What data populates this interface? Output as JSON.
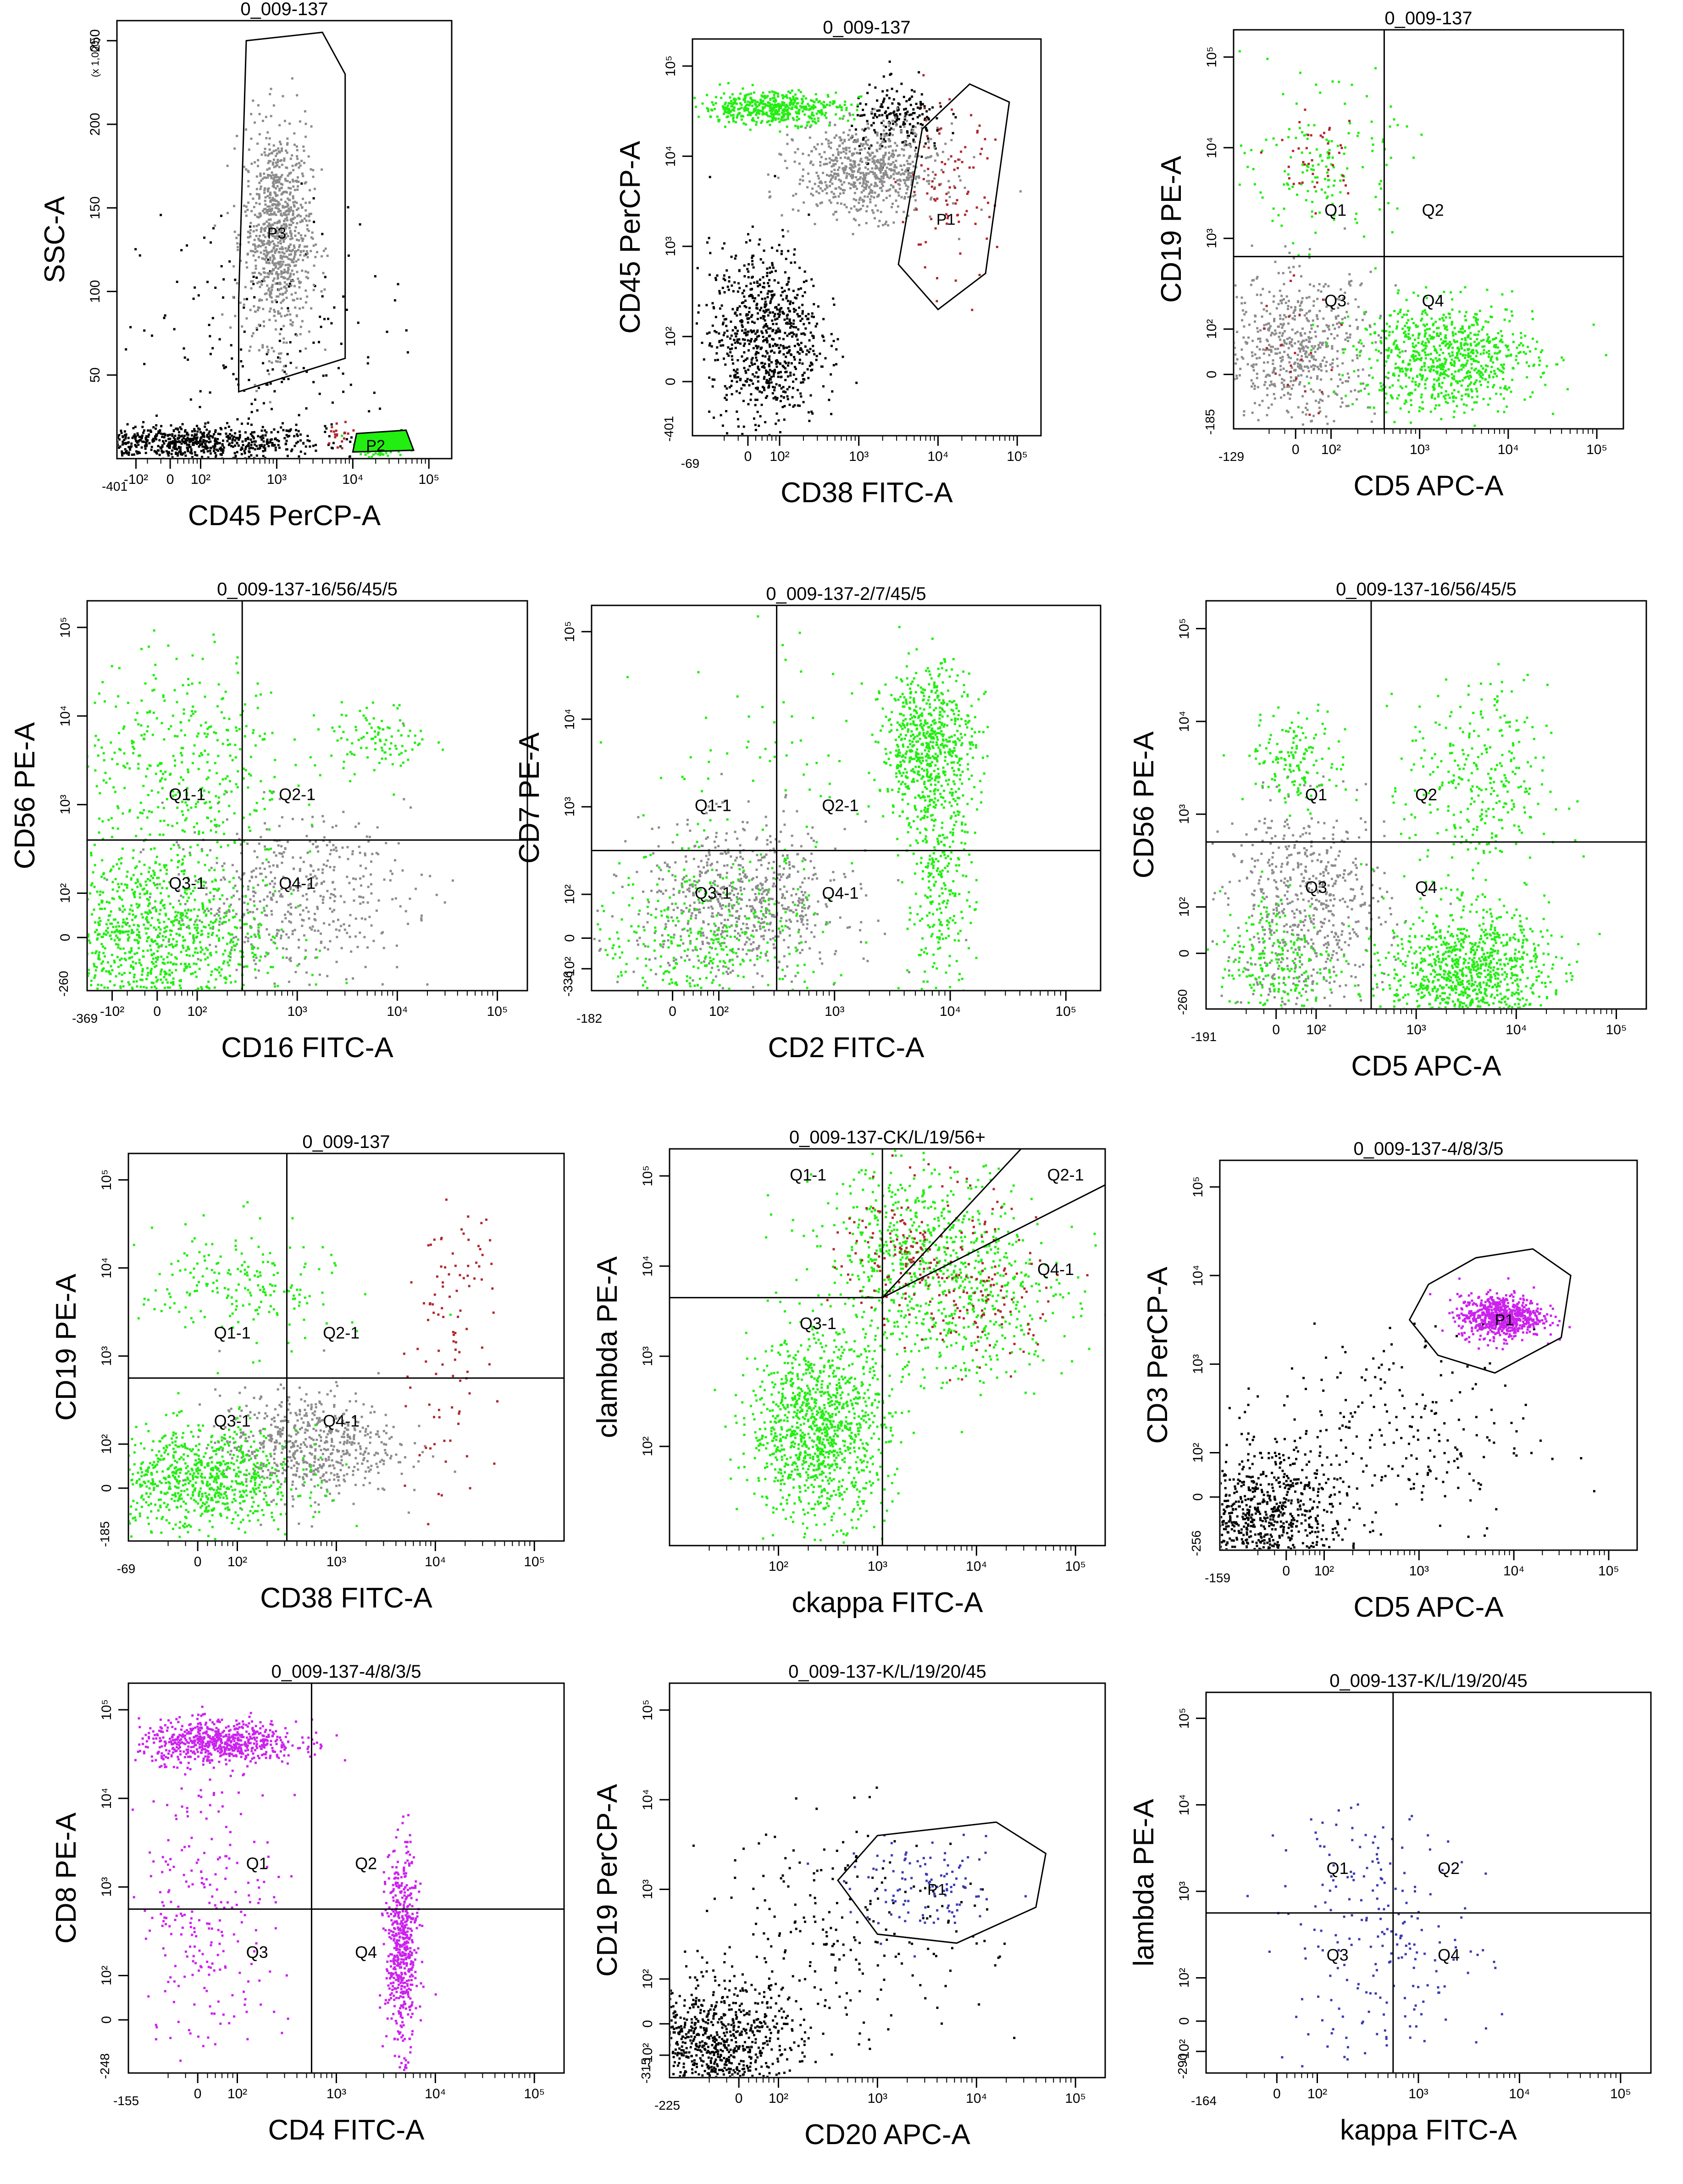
{
  "figure": {
    "background": "#ffffff"
  },
  "colors": {
    "black": "#000000",
    "gray": "#8c8c8c",
    "green": "#22ee11",
    "red": "#b0282e",
    "magenta": "#cc22ee",
    "blue": "#3a3ab0"
  },
  "chart_data": [
    {
      "type": "scatter",
      "title": "0_009-137",
      "xlabel": "CD45 PerCP-A",
      "ylabel": "SSC-A",
      "xscale": "log",
      "yscale": "linear",
      "ylabel_multiplier": "(x 1,000)",
      "xlim": [
        -401,
        200000
      ],
      "ylim": [
        0,
        262
      ],
      "x_ticks": [
        "-10²",
        "0",
        "10²",
        "10³",
        "10⁴",
        "10⁵"
      ],
      "x_min_label": "-401",
      "y_ticks": [
        "50",
        "100",
        "150",
        "200",
        "250"
      ],
      "populations": [
        {
          "color": "gray",
          "cx": 3.0,
          "cy": 135,
          "sx": 0.22,
          "sy": 32,
          "n": 900
        },
        {
          "color": "black",
          "cx": 1.8,
          "cy": 10,
          "sx": 0.9,
          "sy": 5,
          "n": 700
        },
        {
          "color": "black",
          "cx": 2.8,
          "cy": 60,
          "sx": 0.8,
          "sy": 45,
          "n": 200
        },
        {
          "color": "green",
          "cx": 4.35,
          "cy": 8,
          "sx": 0.15,
          "sy": 3,
          "n": 120
        },
        {
          "color": "red",
          "cx": 3.8,
          "cy": 15,
          "sx": 0.15,
          "sy": 5,
          "n": 20
        }
      ],
      "gates": [
        {
          "label": "P3",
          "label_at": [
            3.0,
            135
          ],
          "points": [
            [
              2.5,
              95
            ],
            [
              2.6,
              250
            ],
            [
              3.6,
              255
            ],
            [
              3.9,
              230
            ],
            [
              3.9,
              60
            ],
            [
              2.5,
              40
            ]
          ]
        },
        {
          "label": "P2",
          "label_at": [
            4.3,
            8
          ],
          "fill": "green",
          "points": [
            [
              4.0,
              4
            ],
            [
              4.05,
              15
            ],
            [
              4.7,
              17
            ],
            [
              4.8,
              5
            ]
          ]
        }
      ],
      "quadrants": null
    },
    {
      "type": "scatter",
      "title": "0_009-137",
      "xlabel": "CD38 FITC-A",
      "ylabel": "CD45 PerCP-A",
      "xscale": "log",
      "yscale": "log",
      "xlim": [
        -69,
        200000
      ],
      "ylim": [
        -401,
        200000
      ],
      "x_ticks": [
        "0",
        "10²",
        "10³",
        "10⁴",
        "10⁵"
      ],
      "x_min_label": "-69",
      "y_ticks": [
        "0",
        "10²",
        "10³",
        "10⁴",
        "10⁵"
      ],
      "y_min_label": "-401",
      "populations": [
        {
          "color": "black",
          "cx": 1.8,
          "cy": 2.0,
          "sx": 0.35,
          "sy": 0.5,
          "n": 800
        },
        {
          "color": "gray",
          "cx": 3.1,
          "cy": 3.85,
          "sx": 0.45,
          "sy": 0.25,
          "n": 700
        },
        {
          "color": "green",
          "cx": 1.9,
          "cy": 4.55,
          "sx": 0.45,
          "sy": 0.09,
          "n": 500
        },
        {
          "color": "black",
          "cx": 3.5,
          "cy": 4.4,
          "sx": 0.3,
          "sy": 0.2,
          "n": 200
        },
        {
          "color": "red",
          "cx": 4.1,
          "cy": 3.6,
          "sx": 0.3,
          "sy": 0.5,
          "n": 90
        }
      ],
      "gates": [
        {
          "label": "P1",
          "label_at": [
            4.1,
            3.3
          ],
          "points": [
            [
              3.8,
              4.3
            ],
            [
              4.4,
              4.8
            ],
            [
              4.9,
              4.6
            ],
            [
              4.6,
              2.7
            ],
            [
              4.0,
              2.3
            ],
            [
              3.5,
              2.8
            ]
          ]
        }
      ],
      "quadrants": null
    },
    {
      "type": "scatter",
      "title": "0_009-137",
      "xlabel": "CD5 APC-A",
      "ylabel": "CD19 PE-A",
      "xscale": "log",
      "yscale": "log",
      "xlim": [
        -129,
        200000
      ],
      "ylim": [
        -185,
        200000
      ],
      "x_ticks": [
        "0",
        "10²",
        "10³",
        "10⁴",
        "10⁵"
      ],
      "x_min_label": "-129",
      "y_ticks": [
        "0",
        "10²",
        "10³",
        "10⁴",
        "10⁵"
      ],
      "y_min_label": "-185",
      "populations": [
        {
          "color": "gray",
          "cx": 1.6,
          "cy": 1.8,
          "sx": 0.45,
          "sy": 0.4,
          "n": 600
        },
        {
          "color": "green",
          "cx": 3.3,
          "cy": 1.7,
          "sx": 0.5,
          "sy": 0.3,
          "n": 800
        },
        {
          "color": "green",
          "cx": 1.9,
          "cy": 3.8,
          "sx": 0.4,
          "sy": 0.4,
          "n": 150
        },
        {
          "color": "red",
          "cx": 1.8,
          "cy": 3.9,
          "sx": 0.25,
          "sy": 0.3,
          "n": 40
        },
        {
          "color": "red",
          "cx": 1.5,
          "cy": 1.7,
          "sx": 0.3,
          "sy": 0.4,
          "n": 25
        }
      ],
      "gates": [],
      "quadrants": {
        "x": 2.6,
        "y": 2.8,
        "labels": [
          "Q1",
          "Q2",
          "Q3",
          "Q4"
        ]
      }
    },
    {
      "type": "scatter",
      "title": "0_009-137-16/56/45/5",
      "xlabel": "CD16 FITC-A",
      "ylabel": "CD56 PE-A",
      "xscale": "log",
      "yscale": "log",
      "xlim": [
        -369,
        200000
      ],
      "ylim": [
        -260,
        200000
      ],
      "x_ticks": [
        "-10²",
        "0",
        "10²",
        "10³",
        "10⁴",
        "10⁵"
      ],
      "x_min_label": "-369",
      "y_ticks": [
        "0",
        "10²",
        "10³",
        "10⁴",
        "10⁵"
      ],
      "y_min_label": "-260",
      "populations": [
        {
          "color": "green",
          "cx": 1.5,
          "cy": 1.5,
          "sx": 0.6,
          "sy": 0.5,
          "n": 1100
        },
        {
          "color": "gray",
          "cx": 2.9,
          "cy": 2.0,
          "sx": 0.6,
          "sy": 0.45,
          "n": 500
        },
        {
          "color": "green",
          "cx": 1.8,
          "cy": 3.5,
          "sx": 0.55,
          "sy": 0.6,
          "n": 400
        },
        {
          "color": "green",
          "cx": 3.8,
          "cy": 3.75,
          "sx": 0.25,
          "sy": 0.2,
          "n": 100
        }
      ],
      "gates": [],
      "quadrants": {
        "x": 2.45,
        "y": 2.6,
        "labels": [
          "Q1-1",
          "Q2-1",
          "Q3-1",
          "Q4-1"
        ]
      }
    },
    {
      "type": "scatter",
      "title": "0_009-137-2/7/45/5",
      "xlabel": "CD2 FITC-A",
      "ylabel": "CD7 PE-A",
      "xscale": "log",
      "yscale": "log",
      "xlim": [
        -182,
        200000
      ],
      "ylim": [
        -336,
        200000
      ],
      "x_ticks": [
        "0",
        "10²",
        "10³",
        "10⁴",
        "10⁵"
      ],
      "x_min_label": "-182",
      "y_ticks": [
        "-10²",
        "0",
        "10²",
        "10³",
        "10⁴",
        "10⁵"
      ],
      "y_min_label": "-336",
      "populations": [
        {
          "color": "gray",
          "cx": 2.2,
          "cy": 1.9,
          "sx": 0.45,
          "sy": 0.45,
          "n": 700
        },
        {
          "color": "green",
          "cx": 3.8,
          "cy": 3.7,
          "sx": 0.2,
          "sy": 0.45,
          "n": 700
        },
        {
          "color": "green",
          "cx": 3.9,
          "cy": 2.0,
          "sx": 0.15,
          "sy": 0.6,
          "n": 250
        },
        {
          "color": "green",
          "cx": 1.9,
          "cy": 1.5,
          "sx": 0.5,
          "sy": 0.5,
          "n": 400
        },
        {
          "color": "green",
          "cx": 2.5,
          "cy": 3.5,
          "sx": 0.6,
          "sy": 0.6,
          "n": 60
        }
      ],
      "gates": [],
      "quadrants": {
        "x": 2.5,
        "y": 2.5,
        "labels": [
          "Q1-1",
          "Q2-1",
          "Q3-1",
          "Q4-1"
        ]
      }
    },
    {
      "type": "scatter",
      "title": "0_009-137-16/56/45/5",
      "xlabel": "CD5 APC-A",
      "ylabel": "CD56 PE-A",
      "xscale": "log",
      "yscale": "log",
      "xlim": [
        -191,
        200000
      ],
      "ylim": [
        -260,
        200000
      ],
      "x_ticks": [
        "0",
        "10²",
        "10³",
        "10⁴",
        "10⁵"
      ],
      "x_min_label": "-191",
      "y_ticks": [
        "0",
        "10²",
        "10³",
        "10⁴",
        "10⁵"
      ],
      "y_min_label": "-260",
      "populations": [
        {
          "color": "green",
          "cx": 3.5,
          "cy": 1.3,
          "sx": 0.4,
          "sy": 0.35,
          "n": 1000
        },
        {
          "color": "gray",
          "cx": 1.9,
          "cy": 2.0,
          "sx": 0.4,
          "sy": 0.55,
          "n": 600
        },
        {
          "color": "green",
          "cx": 1.8,
          "cy": 3.6,
          "sx": 0.25,
          "sy": 0.25,
          "n": 150
        },
        {
          "color": "green",
          "cx": 3.6,
          "cy": 3.3,
          "sx": 0.35,
          "sy": 0.55,
          "n": 300
        },
        {
          "color": "green",
          "cx": 1.6,
          "cy": 1.4,
          "sx": 0.3,
          "sy": 0.4,
          "n": 250
        }
      ],
      "gates": [],
      "quadrants": {
        "x": 2.55,
        "y": 2.7,
        "labels": [
          "Q1",
          "Q2",
          "Q3",
          "Q4"
        ]
      }
    },
    {
      "type": "scatter",
      "title": "0_009-137",
      "xlabel": "CD38 FITC-A",
      "ylabel": "CD19 PE-A",
      "xscale": "log",
      "yscale": "log",
      "xlim": [
        -69,
        200000
      ],
      "ylim": [
        -185,
        200000
      ],
      "x_ticks": [
        "0",
        "10²",
        "10³",
        "10⁴",
        "10⁵"
      ],
      "x_min_label": "-69",
      "y_ticks": [
        "0",
        "10²",
        "10³",
        "10⁴",
        "10⁵"
      ],
      "y_min_label": "-185",
      "populations": [
        {
          "color": "green",
          "cx": 1.6,
          "cy": 1.6,
          "sx": 0.5,
          "sy": 0.3,
          "n": 800
        },
        {
          "color": "gray",
          "cx": 2.7,
          "cy": 2.0,
          "sx": 0.45,
          "sy": 0.3,
          "n": 600
        },
        {
          "color": "green",
          "cx": 2.0,
          "cy": 3.8,
          "sx": 0.5,
          "sy": 0.35,
          "n": 200
        },
        {
          "color": "red",
          "cx": 4.2,
          "cy": 3.8,
          "sx": 0.2,
          "sy": 0.4,
          "n": 60
        },
        {
          "color": "red",
          "cx": 4.1,
          "cy": 2.2,
          "sx": 0.2,
          "sy": 0.6,
          "n": 40
        }
      ],
      "gates": [],
      "quadrants": {
        "x": 2.5,
        "y": 2.75,
        "labels": [
          "Q1-1",
          "Q2-1",
          "Q3-1",
          "Q4-1"
        ]
      }
    },
    {
      "type": "scatter",
      "title": "0_009-137-CK/L/19/56+",
      "xlabel": "ckappa FITC-A",
      "ylabel": "clambda PE-A",
      "xscale": "log",
      "yscale": "log",
      "xlim": [
        0.5,
        200000
      ],
      "ylim": [
        0.5,
        200000
      ],
      "x_ticks": [
        "10²",
        "10³",
        "10⁴",
        "10⁵"
      ],
      "y_ticks": [
        "10²",
        "10³",
        "10⁴",
        "10⁵"
      ],
      "populations": [
        {
          "color": "green",
          "cx": 2.4,
          "cy": 2.2,
          "sx": 0.35,
          "sy": 0.5,
          "n": 1100
        },
        {
          "color": "green",
          "cx": 3.4,
          "cy": 4.2,
          "sx": 0.5,
          "sy": 0.5,
          "n": 500
        },
        {
          "color": "green",
          "cx": 3.8,
          "cy": 3.6,
          "sx": 0.6,
          "sy": 0.5,
          "n": 400
        },
        {
          "color": "red",
          "cx": 3.4,
          "cy": 4.2,
          "sx": 0.4,
          "sy": 0.4,
          "n": 150
        },
        {
          "color": "red",
          "cx": 4.0,
          "cy": 3.6,
          "sx": 0.4,
          "sy": 0.35,
          "n": 100
        }
      ],
      "gates": [],
      "quadrants": {
        "x": 3.05,
        "y": 3.65,
        "diag1": [
          4.45,
          5.3
        ],
        "diag2": [
          5.3,
          4.9
        ],
        "labels": [
          "Q1-1",
          "Q2-1",
          "Q3-1",
          "Q4-1"
        ]
      }
    },
    {
      "type": "scatter",
      "title": "0_009-137-4/8/3/5",
      "xlabel": "CD5 APC-A",
      "ylabel": "CD3 PerCP-A",
      "xscale": "log",
      "yscale": "log",
      "xlim": [
        -159,
        200000
      ],
      "ylim": [
        -256,
        200000
      ],
      "x_ticks": [
        "0",
        "10²",
        "10³",
        "10⁴",
        "10⁵"
      ],
      "x_min_label": "-159",
      "y_ticks": [
        "0",
        "10²",
        "10³",
        "10⁴",
        "10⁵"
      ],
      "y_min_label": "-256",
      "populations": [
        {
          "color": "black",
          "cx": 1.3,
          "cy": 1.2,
          "sx": 0.45,
          "sy": 0.4,
          "n": 900
        },
        {
          "color": "magenta",
          "cx": 3.85,
          "cy": 3.55,
          "sx": 0.22,
          "sy": 0.12,
          "n": 700
        },
        {
          "color": "black",
          "cx": 2.6,
          "cy": 2.2,
          "sx": 0.8,
          "sy": 0.6,
          "n": 250
        }
      ],
      "gates": [
        {
          "label": "P1",
          "label_at": [
            3.9,
            3.5
          ],
          "points": [
            [
              3.1,
              3.9
            ],
            [
              3.6,
              4.2
            ],
            [
              4.2,
              4.3
            ],
            [
              4.6,
              4.0
            ],
            [
              4.5,
              3.3
            ],
            [
              3.8,
              2.9
            ],
            [
              3.2,
              3.1
            ],
            [
              2.9,
              3.5
            ]
          ]
        }
      ],
      "quadrants": null
    },
    {
      "type": "scatter",
      "title": "0_009-137-4/8/3/5",
      "xlabel": "CD4 FITC-A",
      "ylabel": "CD8 PE-A",
      "xscale": "log",
      "yscale": "log",
      "xlim": [
        -155,
        200000
      ],
      "ylim": [
        -248,
        200000
      ],
      "x_ticks": [
        "0",
        "10²",
        "10³",
        "10⁴",
        "10⁵"
      ],
      "x_min_label": "-155",
      "y_ticks": [
        "0",
        "10²",
        "10³",
        "10⁴",
        "10⁵"
      ],
      "y_min_label": "-248",
      "populations": [
        {
          "color": "magenta",
          "cx": 1.8,
          "cy": 4.65,
          "sx": 0.4,
          "sy": 0.12,
          "n": 650
        },
        {
          "color": "magenta",
          "cx": 3.65,
          "cy": 2.3,
          "sx": 0.08,
          "sy": 0.55,
          "n": 550
        },
        {
          "color": "magenta",
          "cx": 1.7,
          "cy": 2.8,
          "sx": 0.35,
          "sy": 0.9,
          "n": 250
        }
      ],
      "gates": [],
      "quadrants": {
        "x": 2.75,
        "y": 2.75,
        "labels": [
          "Q1",
          "Q2",
          "Q3",
          "Q4"
        ]
      }
    },
    {
      "type": "scatter",
      "title": "0_009-137-K/L/19/20/45",
      "xlabel": "CD20 APC-A",
      "ylabel": "CD19 PerCP-A",
      "xscale": "log",
      "yscale": "log",
      "xlim": [
        -225,
        200000
      ],
      "ylim": [
        -315,
        200000
      ],
      "x_ticks": [
        "0",
        "10²",
        "10³",
        "10⁴",
        "10⁵"
      ],
      "x_min_label": "-225",
      "y_ticks": [
        "-10²",
        "0",
        "10²",
        "10³",
        "10⁴",
        "10⁵"
      ],
      "y_min_label": "-315",
      "populations": [
        {
          "color": "black",
          "cx": 1.3,
          "cy": 1.2,
          "sx": 0.45,
          "sy": 0.4,
          "n": 1000
        },
        {
          "color": "black",
          "cx": 2.7,
          "cy": 2.6,
          "sx": 0.7,
          "sy": 0.6,
          "n": 220
        },
        {
          "color": "blue",
          "cx": 3.5,
          "cy": 3.0,
          "sx": 0.4,
          "sy": 0.25,
          "n": 110
        }
      ],
      "gates": [
        {
          "label": "P1",
          "label_at": [
            3.6,
            3.0
          ],
          "points": [
            [
              2.6,
              3.1
            ],
            [
              3.0,
              3.6
            ],
            [
              4.2,
              3.75
            ],
            [
              4.7,
              3.4
            ],
            [
              4.6,
              2.8
            ],
            [
              3.8,
              2.4
            ],
            [
              3.0,
              2.5
            ]
          ]
        }
      ],
      "quadrants": null
    },
    {
      "type": "scatter",
      "title": "0_009-137-K/L/19/20/45",
      "xlabel": "kappa FITC-A",
      "ylabel": "lambda PE-A",
      "xscale": "log",
      "yscale": "log",
      "xlim": [
        -164,
        200000
      ],
      "ylim": [
        -290,
        200000
      ],
      "x_ticks": [
        "0",
        "10²",
        "10³",
        "10⁴",
        "10⁵"
      ],
      "x_min_label": "-164",
      "y_ticks": [
        "-10²",
        "0",
        "10²",
        "10³",
        "10⁴",
        "10⁵"
      ],
      "y_min_label": "-290",
      "populations": [
        {
          "color": "blue",
          "cx": 2.6,
          "cy": 2.2,
          "sx": 0.55,
          "sy": 0.6,
          "n": 150
        },
        {
          "color": "blue",
          "cx": 2.5,
          "cy": 3.4,
          "sx": 0.35,
          "sy": 0.5,
          "n": 60
        }
      ],
      "gates": [],
      "quadrants": {
        "x": 2.75,
        "y": 2.75,
        "labels": [
          "Q1",
          "Q2",
          "Q3",
          "Q4"
        ]
      }
    }
  ]
}
